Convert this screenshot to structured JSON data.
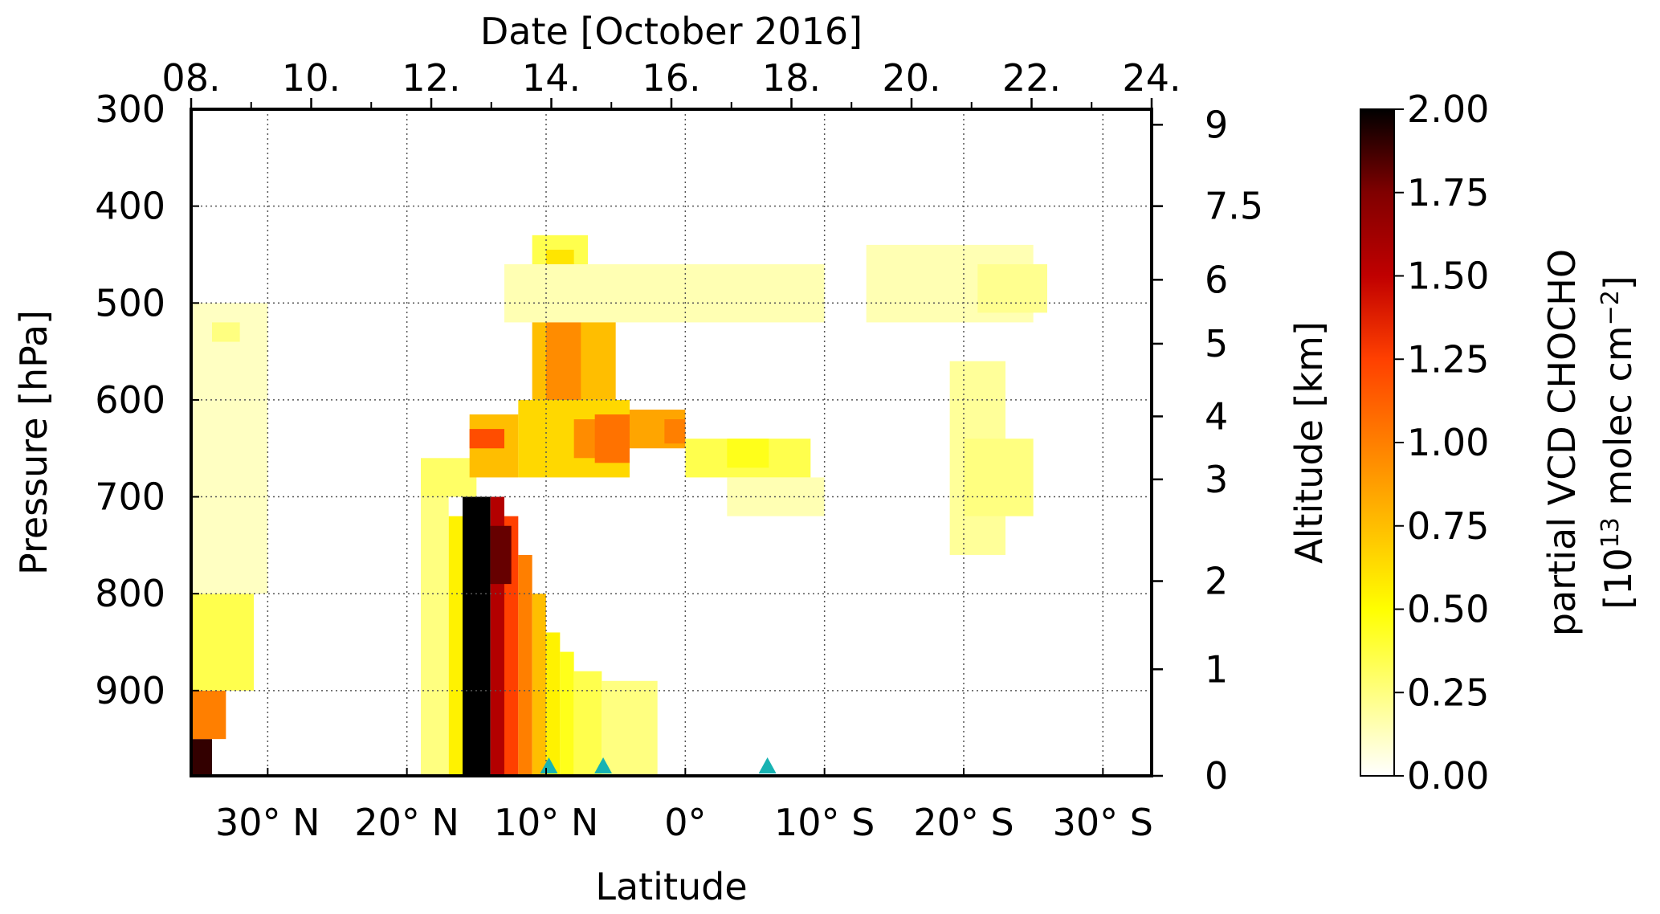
{
  "chart_data": {
    "type": "heatmap",
    "xlabel": "Latitude",
    "x_top_label": "Date [October 2016]",
    "ylabel": "Pressure [hPa]",
    "y_right_label": "Altitude [km]",
    "x_ticks": [
      {
        "value": 30,
        "label": "30° N"
      },
      {
        "value": 20,
        "label": "20° N"
      },
      {
        "value": 10,
        "label": "10° N"
      },
      {
        "value": 0,
        "label": "0°"
      },
      {
        "value": -10,
        "label": "10° S"
      },
      {
        "value": -20,
        "label": "20° S"
      },
      {
        "value": -30,
        "label": "30° S"
      }
    ],
    "x_range": [
      35.5,
      -33.5
    ],
    "top_ticks": [
      {
        "date": "2016-10-08",
        "label": "08."
      },
      {
        "date": "2016-10-10",
        "label": "10."
      },
      {
        "date": "2016-10-12",
        "label": "12."
      },
      {
        "date": "2016-10-14",
        "label": "14."
      },
      {
        "date": "2016-10-16",
        "label": "16."
      },
      {
        "date": "2016-10-18",
        "label": "18."
      },
      {
        "date": "2016-10-20",
        "label": "20."
      },
      {
        "date": "2016-10-22",
        "label": "22."
      },
      {
        "date": "2016-10-24",
        "label": "24."
      }
    ],
    "top_range": [
      "2016-10-08",
      "2016-10-24"
    ],
    "y_ticks": [
      {
        "value": 300,
        "label": "300"
      },
      {
        "value": 400,
        "label": "400"
      },
      {
        "value": 500,
        "label": "500"
      },
      {
        "value": 600,
        "label": "600"
      },
      {
        "value": 700,
        "label": "700"
      },
      {
        "value": 800,
        "label": "800"
      },
      {
        "value": 900,
        "label": "900"
      }
    ],
    "ylim": [
      300,
      988
    ],
    "altitude_ticks": [
      {
        "value": 9,
        "label": "9",
        "pressure": 316
      },
      {
        "value": 7.5,
        "label": "7.5",
        "pressure": 400
      },
      {
        "value": 6,
        "label": "6",
        "pressure": 476
      },
      {
        "value": 5,
        "label": "5",
        "pressure": 542
      },
      {
        "value": 4,
        "label": "4",
        "pressure": 617
      },
      {
        "value": 3,
        "label": "3",
        "pressure": 682
      },
      {
        "value": 2,
        "label": "2",
        "pressure": 787
      },
      {
        "value": 1,
        "label": "1",
        "pressure": 878
      },
      {
        "value": 0,
        "label": "0",
        "pressure": 988
      }
    ],
    "colorbar": {
      "label": "partial VCD CHOCHO",
      "units_prefix": "[10",
      "units_exp1": "13",
      "units_mid": " molec cm",
      "units_exp2": "−2",
      "units_suffix": "]",
      "range": [
        0,
        2
      ],
      "colormap": "afmhot_r",
      "colors": [
        "#ffffff",
        "#ffff80",
        "#ffff00",
        "#ffbe00",
        "#ff7f00",
        "#ff4000",
        "#c00000",
        "#800000",
        "#000000"
      ],
      "ticks": [
        {
          "value": 0,
          "label": "0.00"
        },
        {
          "value": 0.25,
          "label": "0.25"
        },
        {
          "value": 0.5,
          "label": "0.50"
        },
        {
          "value": 0.75,
          "label": "0.75"
        },
        {
          "value": 1.0,
          "label": "1.00"
        },
        {
          "value": 1.25,
          "label": "1.25"
        },
        {
          "value": 1.5,
          "label": "1.50"
        },
        {
          "value": 1.75,
          "label": "1.75"
        },
        {
          "value": 2.0,
          "label": "2.00"
        }
      ]
    },
    "markers": [
      {
        "lat": 9.8,
        "color": "#17b3b3"
      },
      {
        "lat": 5.9,
        "color": "#17b3b3"
      },
      {
        "lat": -5.9,
        "color": "#17b3b3"
      }
    ],
    "features": [
      {
        "lat": [
          14.0,
          16.0
        ],
        "p": [
          700,
          988
        ],
        "value": 2.0
      },
      {
        "lat": [
          13.0,
          14.0
        ],
        "p": [
          700,
          988
        ],
        "value": 1.55
      },
      {
        "lat": [
          12.0,
          13.0
        ],
        "p": [
          720,
          988
        ],
        "value": 1.25
      },
      {
        "lat": [
          11.0,
          12.0
        ],
        "p": [
          760,
          988
        ],
        "value": 1.0
      },
      {
        "lat": [
          10.0,
          11.0
        ],
        "p": [
          800,
          988
        ],
        "value": 0.75
      },
      {
        "lat": [
          9.0,
          10.0
        ],
        "p": [
          840,
          988
        ],
        "value": 0.55
      },
      {
        "lat": [
          8.0,
          9.0
        ],
        "p": [
          860,
          988
        ],
        "value": 0.45
      },
      {
        "lat": [
          6.0,
          8.0
        ],
        "p": [
          880,
          988
        ],
        "value": 0.35
      },
      {
        "lat": [
          2.0,
          6.0
        ],
        "p": [
          890,
          988
        ],
        "value": 0.25
      },
      {
        "lat": [
          12.5,
          14.0
        ],
        "p": [
          730,
          790
        ],
        "value": 1.8
      },
      {
        "lat": [
          16.0,
          17.0
        ],
        "p": [
          720,
          988
        ],
        "value": 0.55
      },
      {
        "lat": [
          17.0,
          19.0
        ],
        "p": [
          700,
          988
        ],
        "value": 0.25
      },
      {
        "lat": [
          15.0,
          19.0
        ],
        "p": [
          660,
          700
        ],
        "value": 0.3
      },
      {
        "lat": [
          15.5,
          12.0
        ],
        "p": [
          615,
          680
        ],
        "value": 0.75
      },
      {
        "lat": [
          15.5,
          13.0
        ],
        "p": [
          630,
          650
        ],
        "value": 1.2
      },
      {
        "lat": [
          12.0,
          4.0
        ],
        "p": [
          600,
          680
        ],
        "value": 0.65
      },
      {
        "lat": [
          8.0,
          5.0
        ],
        "p": [
          620,
          660
        ],
        "value": 0.95
      },
      {
        "lat": [
          6.5,
          4.0
        ],
        "p": [
          615,
          665
        ],
        "value": 1.05
      },
      {
        "lat": [
          4.0,
          0.0
        ],
        "p": [
          610,
          650
        ],
        "value": 0.85
      },
      {
        "lat": [
          1.5,
          0.0
        ],
        "p": [
          620,
          645
        ],
        "value": 1.0
      },
      {
        "lat": [
          0.0,
          -9.0
        ],
        "p": [
          640,
          680
        ],
        "value": 0.35
      },
      {
        "lat": [
          -3.0,
          -6.0
        ],
        "p": [
          640,
          670
        ],
        "value": 0.45
      },
      {
        "lat": [
          11.0,
          5.0
        ],
        "p": [
          480,
          600
        ],
        "value": 0.75
      },
      {
        "lat": [
          10.0,
          7.5
        ],
        "p": [
          500,
          600
        ],
        "value": 0.95
      },
      {
        "lat": [
          11.0,
          7.0
        ],
        "p": [
          430,
          480
        ],
        "value": 0.35
      },
      {
        "lat": [
          10.0,
          8.0
        ],
        "p": [
          445,
          465
        ],
        "value": 0.6
      },
      {
        "lat": [
          13.0,
          -10.0
        ],
        "p": [
          460,
          520
        ],
        "value": 0.15
      },
      {
        "lat": [
          35.5,
          34.0
        ],
        "p": [
          950,
          988
        ],
        "value": 1.9
      },
      {
        "lat": [
          35.5,
          33.0
        ],
        "p": [
          900,
          950
        ],
        "value": 1.0
      },
      {
        "lat": [
          35.5,
          31.0
        ],
        "p": [
          800,
          900
        ],
        "value": 0.35
      },
      {
        "lat": [
          35.5,
          30.0
        ],
        "p": [
          500,
          800
        ],
        "value": 0.12
      },
      {
        "lat": [
          34.0,
          32.0
        ],
        "p": [
          520,
          540
        ],
        "value": 0.25
      },
      {
        "lat": [
          -13.0,
          -25.0
        ],
        "p": [
          440,
          520
        ],
        "value": 0.15
      },
      {
        "lat": [
          -21.0,
          -26.0
        ],
        "p": [
          460,
          510
        ],
        "value": 0.22
      },
      {
        "lat": [
          -19.0,
          -23.0
        ],
        "p": [
          560,
          760
        ],
        "value": 0.2
      },
      {
        "lat": [
          -20.0,
          -25.0
        ],
        "p": [
          640,
          720
        ],
        "value": 0.25
      },
      {
        "lat": [
          -3.0,
          -10.0
        ],
        "p": [
          680,
          720
        ],
        "value": 0.15
      }
    ]
  }
}
